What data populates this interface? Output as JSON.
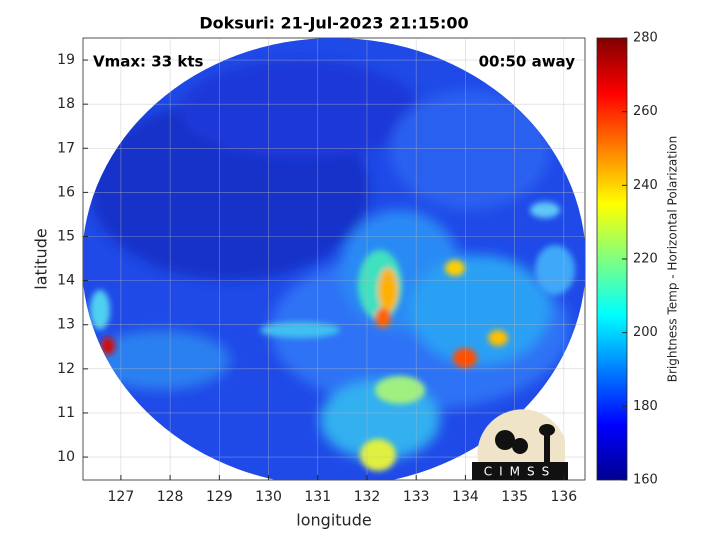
{
  "chart_data": {
    "type": "image",
    "title": "Doksuri: 21-Jul-2023 21:15:00",
    "x_label": "longitude",
    "y_label": "latitude",
    "xlim": [
      126.23,
      136.43
    ],
    "ylim": [
      9.48,
      19.5
    ],
    "xticks": [
      127,
      128,
      129,
      130,
      131,
      132,
      133,
      134,
      135,
      136
    ],
    "yticks": [
      10,
      11,
      12,
      13,
      14,
      15,
      16,
      17,
      18,
      19
    ],
    "grid": true,
    "annotations": [
      "Vmax: 33 kts",
      "00:50 away"
    ],
    "colorbar": {
      "label": "Brightness Temp - Horizontal Polarization",
      "colormap": "jet",
      "lim": [
        160,
        280
      ],
      "ticks": [
        160,
        180,
        200,
        220,
        240,
        260,
        280
      ]
    },
    "logo_text": "CIMSS"
  }
}
